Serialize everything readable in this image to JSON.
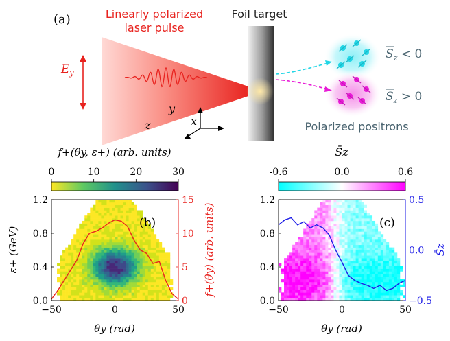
{
  "schematic": {
    "panel_label": "(a)",
    "laser_label_line1": "Linearly polarized",
    "laser_label_line2": "laser pulse",
    "foil_label": "Foil target",
    "efield_label": "E",
    "efield_sub": "y",
    "axis_y": "y",
    "axis_z": "z",
    "axis_x": "x",
    "positron_label": "Polarized positrons",
    "spin_top": "S",
    "spin_top_sub": "z",
    "spin_top_rel": " < 0",
    "spin_bottom": "S",
    "spin_bottom_sub": "z",
    "spin_bottom_rel": " > 0",
    "colors": {
      "laser": "#e8231f",
      "positron_top": "#22d6e6",
      "positron_bottom": "#e81ad6",
      "label_gray": "#4a6470"
    }
  },
  "colorbar_b": {
    "title": "f+(θy, ε+) (arb. units)",
    "ticks": [
      "0",
      "10",
      "20",
      "30"
    ],
    "colormap": "viridis_r"
  },
  "colorbar_c": {
    "title": "S̄z",
    "ticks": [
      "-0.6",
      "0.0",
      "0.6"
    ],
    "colormap": "cyan-white-magenta"
  },
  "panel_b": {
    "label": "(b)",
    "xlabel": "θy (rad)",
    "ylabel_left": "ε+ (GeV)",
    "ylabel_right": "f+(θy) (arb. units)",
    "xticks": [
      "−50",
      "0",
      "50"
    ],
    "yticks_left": [
      "0.0",
      "0.4",
      "0.8",
      "1.2"
    ],
    "yticks_right": [
      "0",
      "5",
      "10",
      "15"
    ]
  },
  "panel_c": {
    "label": "(c)",
    "xlabel": "θy (rad)",
    "ylabel_right": "S̄z",
    "xticks": [
      "−50",
      "0",
      "50"
    ],
    "yticks_left": [
      "0.0",
      "0.4",
      "0.8",
      "1.2"
    ],
    "yticks_right": [
      "−0.5",
      "0.0",
      "0.5"
    ]
  },
  "chart_data": [
    {
      "type": "heatmap",
      "panel": "b",
      "title": "",
      "xlabel": "θy (rad)",
      "ylabel": "ε+ (GeV)",
      "xlim": [
        -50,
        50
      ],
      "ylim": [
        0,
        1.2
      ],
      "colorbar_range": [
        0,
        30
      ],
      "description_values": "density peaked near θy=0, ε+≈0.4 GeV (≈28), falling toward edges",
      "series": [
        {
          "name": "f+(θy)",
          "axis": "right",
          "ylim": [
            0,
            15
          ],
          "x": [
            -50,
            -45,
            -40,
            -35,
            -30,
            -25,
            -20,
            -15,
            -10,
            -5,
            0,
            5,
            10,
            15,
            20,
            25,
            30,
            35,
            40,
            45,
            50
          ],
          "y": [
            0.2,
            1.5,
            3.0,
            4.5,
            6.0,
            8.5,
            10.0,
            10.3,
            10.8,
            11.5,
            12.0,
            11.8,
            11.0,
            9.0,
            7.5,
            7.0,
            5.5,
            5.8,
            3.0,
            1.0,
            0.2
          ]
        }
      ]
    },
    {
      "type": "heatmap",
      "panel": "c",
      "title": "",
      "xlabel": "θy (rad)",
      "ylabel": "ε+ (GeV)",
      "xlim": [
        -50,
        50
      ],
      "ylim": [
        0,
        1.2
      ],
      "colorbar_range": [
        -0.6,
        0.6
      ],
      "description_values": "left half (θy<0) magenta (S̄z>0), right half (θy>0) cyan (S̄z<0)",
      "series": [
        {
          "name": "S̄z",
          "axis": "right",
          "ylim": [
            -0.5,
            0.5
          ],
          "x": [
            -50,
            -45,
            -40,
            -35,
            -30,
            -25,
            -20,
            -15,
            -10,
            -5,
            0,
            5,
            10,
            15,
            20,
            25,
            30,
            35,
            40,
            45,
            50
          ],
          "y": [
            0.25,
            0.3,
            0.32,
            0.25,
            0.28,
            0.22,
            0.25,
            0.22,
            0.15,
            0.0,
            -0.12,
            -0.25,
            -0.3,
            -0.33,
            -0.35,
            -0.38,
            -0.35,
            -0.4,
            -0.38,
            -0.33,
            -0.3
          ]
        }
      ]
    }
  ]
}
